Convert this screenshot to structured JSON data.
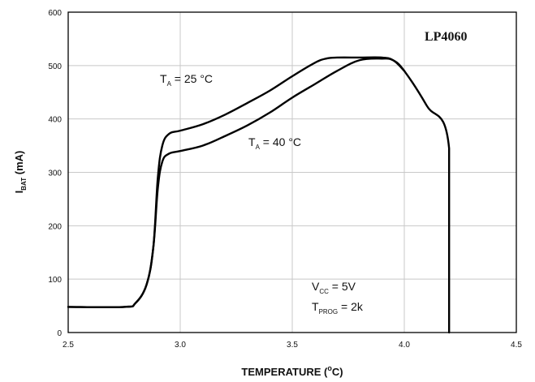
{
  "chart_data": {
    "type": "line",
    "title": "",
    "xlabel": "TEMPERATURE (",
    "xlabel_unit_sup": "o",
    "xlabel_unit_rest": "C)",
    "ylabel_main": "I",
    "ylabel_sub": "BAT",
    "ylabel_unit": "(mA)",
    "xlim": [
      2.5,
      4.5
    ],
    "ylim": [
      0,
      600
    ],
    "x_ticks": [
      2.5,
      3.0,
      3.5,
      4.0,
      4.5
    ],
    "x_tick_labels": [
      "2.5",
      "3.0",
      "3.5",
      "4.0",
      "4.5"
    ],
    "y_ticks": [
      0,
      100,
      200,
      300,
      400,
      500,
      600
    ],
    "y_tick_labels": [
      "0",
      "100",
      "200",
      "300",
      "400",
      "500",
      "600"
    ],
    "grid": true,
    "badge": "LP4060",
    "series": [
      {
        "name_main": "T",
        "name_sub": "A",
        "name_rest": " = 25 °C",
        "x": [
          2.5,
          2.75,
          2.8,
          2.85,
          2.88,
          2.9,
          2.92,
          2.95,
          3.0,
          3.1,
          3.2,
          3.3,
          3.4,
          3.5,
          3.6,
          3.65,
          3.7,
          3.8,
          3.9,
          3.95,
          4.0,
          4.1,
          4.2,
          4.2
        ],
        "y": [
          48,
          48,
          55,
          90,
          160,
          290,
          350,
          372,
          378,
          390,
          408,
          430,
          453,
          480,
          505,
          513,
          515,
          515,
          515,
          510,
          490,
          425,
          345,
          0
        ]
      },
      {
        "name_main": "T",
        "name_sub": "A",
        "name_rest": " = 40 °C",
        "x": [
          2.5,
          2.75,
          2.8,
          2.85,
          2.88,
          2.9,
          2.92,
          2.95,
          3.0,
          3.1,
          3.2,
          3.3,
          3.4,
          3.5,
          3.6,
          3.7,
          3.8,
          3.9,
          3.95,
          4.0
        ],
        "y": [
          48,
          48,
          55,
          90,
          160,
          270,
          320,
          335,
          340,
          350,
          368,
          388,
          412,
          440,
          465,
          490,
          510,
          513,
          510,
          490
        ]
      }
    ],
    "annotation": {
      "vcc_main": "V",
      "vcc_sub": "CC",
      "vcc_rest": " = 5V",
      "tprog_main": "T",
      "tprog_sub": "PROG",
      "tprog_rest": " = 2k"
    }
  }
}
